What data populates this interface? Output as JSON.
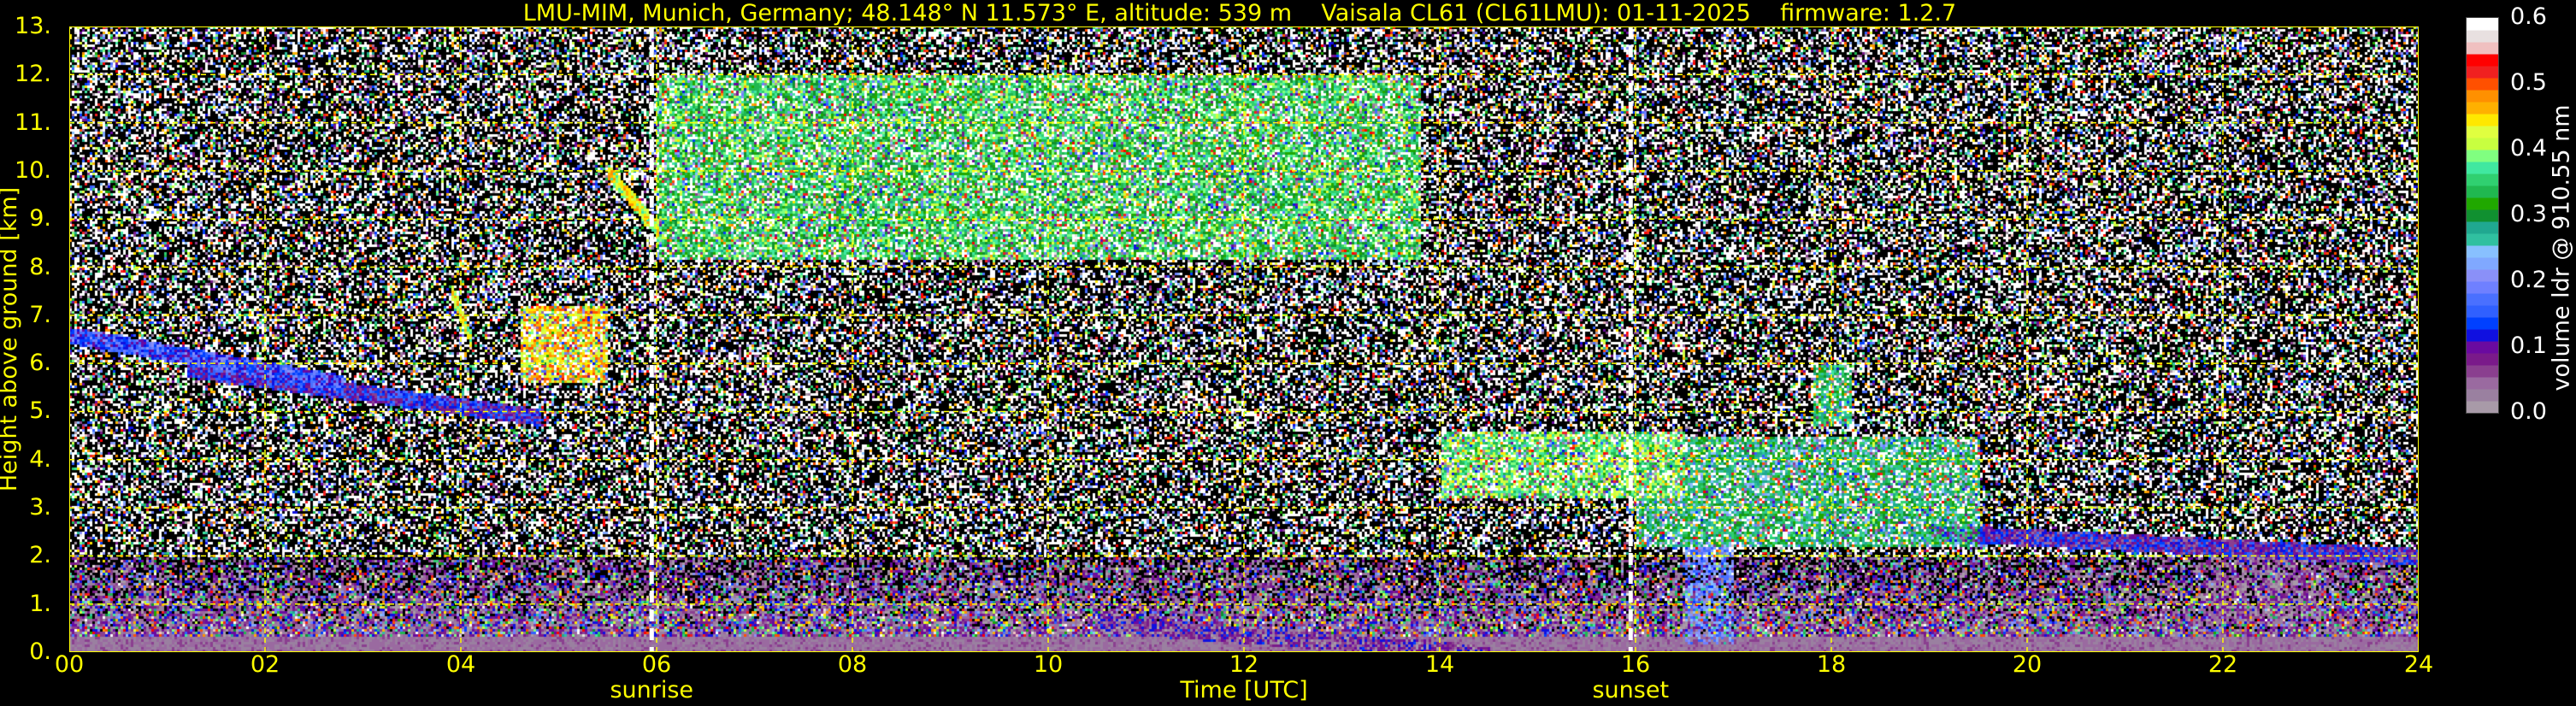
{
  "chart_data": {
    "type": "heatmap",
    "title": "LMU-MIM, Munich, Germany; 48.148° N 11.573° E, altitude: 539 m    Vaisala CL61 (CL61LMU): 01-11-2025    firmware: 1.2.7",
    "xlabel": "Time [UTC]",
    "ylabel": "Height above ground [km]",
    "xlim": [
      0,
      24
    ],
    "ylim": [
      0,
      13
    ],
    "x_ticks": [
      "00",
      "02",
      "04",
      "06",
      "08",
      "10",
      "12",
      "14",
      "16",
      "18",
      "20",
      "22",
      "24"
    ],
    "y_ticks": [
      "0.",
      "1.",
      "2.",
      "3.",
      "4.",
      "5.",
      "6.",
      "7.",
      "8.",
      "9.",
      "10.",
      "11.",
      "12.",
      "13."
    ],
    "grid": true,
    "grid_color": "#ffff00",
    "background": "#000000",
    "events": [
      {
        "label": "sunrise",
        "time_h": 5.95
      },
      {
        "label": "sunset",
        "time_h": 15.95
      }
    ],
    "colorbar": {
      "label": "volume ldr @ 910.55 nm",
      "range": [
        0.0,
        0.6
      ],
      "ticks": [
        "0.0",
        "0.1",
        "0.2",
        "0.3",
        "0.4",
        "0.5",
        "0.6"
      ],
      "colors": [
        "#a89aa8",
        "#9a80a0",
        "#9a6aa0",
        "#8a3f8f",
        "#7a1a8a",
        "#6a0aa0",
        "#1010e0",
        "#0040ff",
        "#3060ff",
        "#4a70ff",
        "#6f80ff",
        "#8a90f8",
        "#80a8ff",
        "#88c0ff",
        "#30c0a0",
        "#20a890",
        "#109030",
        "#20a800",
        "#20b850",
        "#30d070",
        "#40e8a0",
        "#80ff80",
        "#c8ff40",
        "#e0ff40",
        "#ffe800",
        "#ffb000",
        "#ff9000",
        "#ff5000",
        "#f02020",
        "#ff0000",
        "#f0c0c0",
        "#e8e0e0",
        "#ffffff"
      ]
    },
    "features": [
      {
        "t_start": 0.0,
        "t_end": 2.8,
        "height_km": [
          6.6,
          5.6
        ],
        "ldr": 0.15
      },
      {
        "t_start": 1.2,
        "t_end": 4.8,
        "height_km": [
          5.9,
          4.9
        ],
        "ldr": 0.12
      },
      {
        "t_start": 3.9,
        "t_end": 4.1,
        "height_km": [
          7.5,
          6.5
        ],
        "ldr": 0.42
      },
      {
        "t_start": 4.6,
        "t_end": 5.5,
        "height_km": [
          7.2,
          5.6
        ],
        "ldr": 0.45
      },
      {
        "t_start": 5.5,
        "t_end": 6.0,
        "height_km": [
          10.0,
          8.8
        ],
        "ldr": 0.43
      },
      {
        "t_start": 6.0,
        "t_end": 13.8,
        "height_km": [
          12.0,
          8.2
        ],
        "ldr": 0.35
      },
      {
        "t_start": 14.0,
        "t_end": 16.5,
        "height_km": [
          4.6,
          3.2
        ],
        "ldr": 0.38
      },
      {
        "t_start": 16.0,
        "t_end": 19.5,
        "height_km": [
          4.5,
          2.2
        ],
        "ldr": 0.3
      },
      {
        "t_start": 16.5,
        "t_end": 17.0,
        "height_km": [
          2.9,
          0.2
        ],
        "ldr": 0.2
      },
      {
        "t_start": 17.8,
        "t_end": 18.2,
        "height_km": [
          6.0,
          4.7
        ],
        "ldr": 0.32
      },
      {
        "t_start": 19.0,
        "t_end": 24.0,
        "height_km": [
          2.5,
          2.0
        ],
        "ldr": 0.1
      },
      {
        "t_start": 21.8,
        "t_end": 23.0,
        "height_km": [
          2.0,
          0.6
        ],
        "ldr": 0.05
      },
      {
        "t_start": 10.5,
        "t_end": 14.5,
        "height_km": [
          0.6,
          0.0
        ],
        "ldr": 0.07
      }
    ]
  }
}
